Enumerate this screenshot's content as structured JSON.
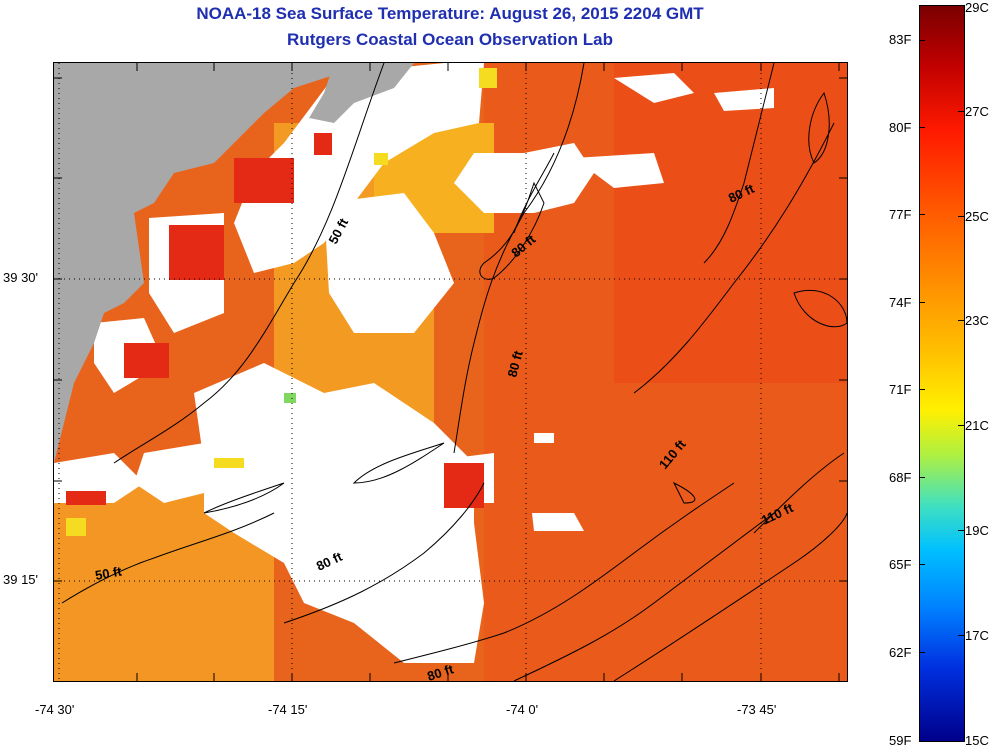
{
  "title_line1": "NOAA-18 Sea Surface Temperature:  August 26, 2015 2204 GMT",
  "title_line2": "Rutgers Coastal Ocean Observation Lab",
  "y_axis_labels": [
    "39 30'",
    "39 15'"
  ],
  "x_axis_labels": [
    "-74 30'",
    "-74 15'",
    "-74 0'",
    "-73 45'"
  ],
  "contour_labels": [
    "50 ft",
    "80 ft",
    "80 ft",
    "80 ft",
    "110 ft",
    "110 ft",
    "50 ft",
    "80 ft",
    "80 ft"
  ],
  "colorbar_f": [
    "83F",
    "80F",
    "77F",
    "74F",
    "71F",
    "68F",
    "65F",
    "62F",
    "59F"
  ],
  "colorbar_c": [
    "29C",
    "27C",
    "25C",
    "23C",
    "21C",
    "19C",
    "17C",
    "15C"
  ],
  "colors": {
    "land": "#a8a8a8",
    "cloud": "#ffffff",
    "ocean": "#e86a1d",
    "title": "#1f2fb0"
  }
}
